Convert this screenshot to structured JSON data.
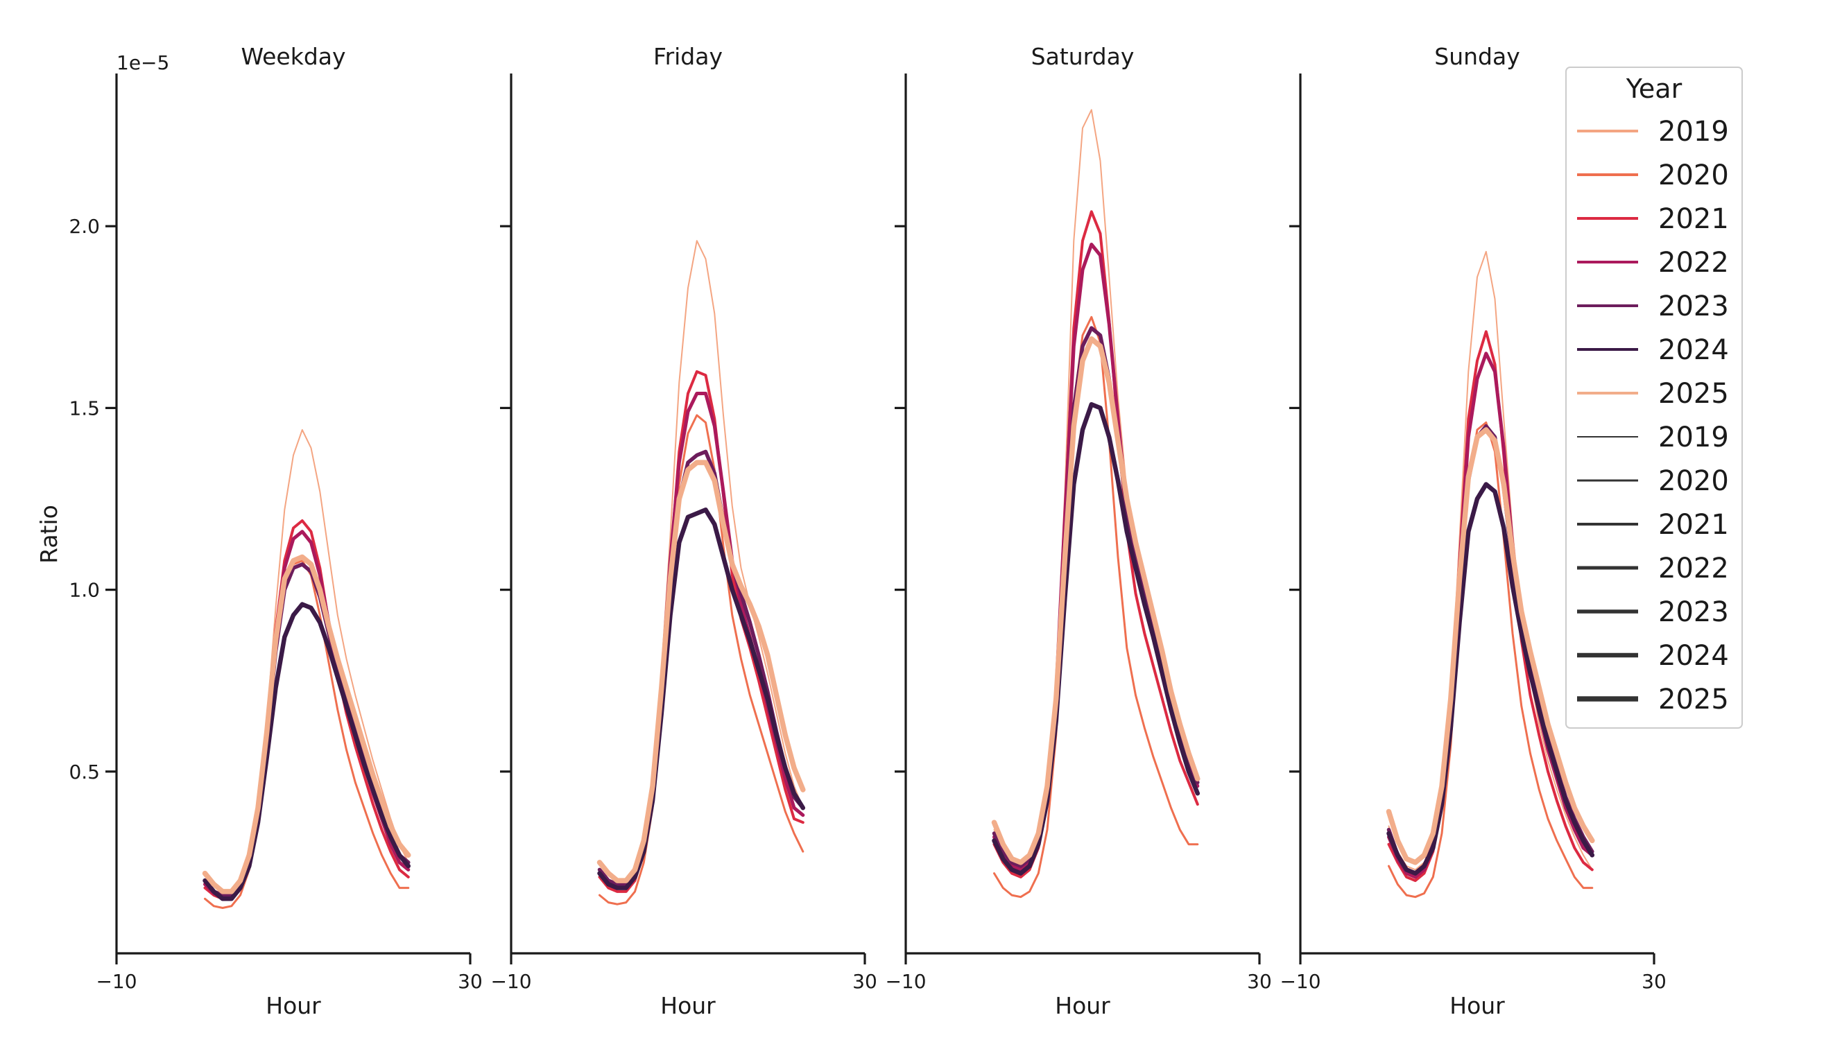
{
  "chart_data": {
    "type": "line",
    "ylabel": "Ratio",
    "xlabel": "Hour",
    "y_offset_label": "1e−5",
    "xlim": [
      -10,
      30
    ],
    "ylim": [
      0,
      2.42
    ],
    "xticks": [
      {
        "value": -10,
        "label": "−10"
      },
      {
        "value": 30,
        "label": "30"
      }
    ],
    "yticks": [
      {
        "value": 0.5,
        "label": "0.5"
      },
      {
        "value": 1.0,
        "label": "1.0"
      },
      {
        "value": 1.5,
        "label": "1.5"
      },
      {
        "value": 2.0,
        "label": "2.0"
      }
    ],
    "x": [
      0,
      1,
      2,
      3,
      4,
      5,
      6,
      7,
      8,
      9,
      10,
      11,
      12,
      13,
      14,
      15,
      16,
      17,
      18,
      19,
      20,
      21,
      22,
      23
    ],
    "year_colors": {
      "2019": "#f4a582",
      "2020": "#ef6f4f",
      "2021": "#dc2a42",
      "2022": "#ab1a5c",
      "2023": "#6d1d5c",
      "2024": "#3b1a47",
      "2025": "#f2ad8a"
    },
    "year_widths": {
      "2019": 2,
      "2020": 3,
      "2021": 4,
      "2022": 5,
      "2023": 5.5,
      "2024": 6.5,
      "2025": 7.5
    },
    "panels": [
      {
        "title": "Weekday",
        "series": [
          {
            "name": "2019",
            "values": [
              0.2,
              0.17,
              0.16,
              0.16,
              0.19,
              0.26,
              0.4,
              0.64,
              0.95,
              1.22,
              1.37,
              1.44,
              1.39,
              1.27,
              1.1,
              0.93,
              0.81,
              0.71,
              0.62,
              0.53,
              0.45,
              0.37,
              0.3,
              0.25
            ]
          },
          {
            "name": "2020",
            "values": [
              0.15,
              0.13,
              0.125,
              0.13,
              0.16,
              0.23,
              0.36,
              0.58,
              0.84,
              1.0,
              1.07,
              1.08,
              1.04,
              0.93,
              0.8,
              0.67,
              0.56,
              0.47,
              0.4,
              0.33,
              0.27,
              0.22,
              0.18,
              0.18
            ]
          },
          {
            "name": "2021",
            "values": [
              0.18,
              0.16,
              0.15,
              0.15,
              0.18,
              0.25,
              0.38,
              0.61,
              0.89,
              1.08,
              1.17,
              1.19,
              1.16,
              1.06,
              0.91,
              0.77,
              0.66,
              0.57,
              0.49,
              0.41,
              0.34,
              0.28,
              0.23,
              0.21
            ]
          },
          {
            "name": "2022",
            "values": [
              0.19,
              0.165,
              0.155,
              0.155,
              0.185,
              0.255,
              0.385,
              0.6,
              0.87,
              1.06,
              1.14,
              1.16,
              1.13,
              1.04,
              0.91,
              0.79,
              0.69,
              0.6,
              0.52,
              0.44,
              0.37,
              0.3,
              0.25,
              0.23
            ]
          },
          {
            "name": "2023",
            "values": [
              0.2,
              0.17,
              0.16,
              0.16,
              0.19,
              0.26,
              0.38,
              0.59,
              0.83,
              1.0,
              1.06,
              1.07,
              1.05,
              0.98,
              0.88,
              0.78,
              0.7,
              0.62,
              0.54,
              0.46,
              0.39,
              0.32,
              0.27,
              0.25
            ]
          },
          {
            "name": "2024",
            "values": [
              0.2,
              0.17,
              0.15,
              0.15,
              0.18,
              0.24,
              0.36,
              0.54,
              0.73,
              0.87,
              0.93,
              0.96,
              0.95,
              0.91,
              0.84,
              0.76,
              0.68,
              0.6,
              0.52,
              0.45,
              0.38,
              0.32,
              0.27,
              0.24
            ]
          },
          {
            "name": "2025",
            "values": [
              0.22,
              0.19,
              0.17,
              0.17,
              0.2,
              0.27,
              0.4,
              0.61,
              0.86,
              1.03,
              1.08,
              1.09,
              1.07,
              1.0,
              0.9,
              0.81,
              0.73,
              0.65,
              0.57,
              0.49,
              0.42,
              0.35,
              0.3,
              0.27
            ]
          }
        ]
      },
      {
        "title": "Friday",
        "series": [
          {
            "name": "2019",
            "values": [
              0.22,
              0.2,
              0.19,
              0.19,
              0.22,
              0.29,
              0.45,
              0.78,
              1.15,
              1.57,
              1.83,
              1.96,
              1.91,
              1.76,
              1.48,
              1.23,
              1.06,
              0.96,
              0.87,
              0.77,
              0.66,
              0.55,
              0.46,
              0.4
            ]
          },
          {
            "name": "2020",
            "values": [
              0.16,
              0.14,
              0.135,
              0.14,
              0.17,
              0.25,
              0.4,
              0.68,
              1.0,
              1.29,
              1.43,
              1.48,
              1.46,
              1.33,
              1.12,
              0.93,
              0.81,
              0.71,
              0.63,
              0.55,
              0.47,
              0.39,
              0.33,
              0.28
            ]
          },
          {
            "name": "2021",
            "values": [
              0.21,
              0.18,
              0.17,
              0.17,
              0.2,
              0.28,
              0.43,
              0.73,
              1.07,
              1.38,
              1.54,
              1.6,
              1.59,
              1.47,
              1.26,
              1.04,
              0.92,
              0.84,
              0.75,
              0.65,
              0.55,
              0.45,
              0.37,
              0.36
            ]
          },
          {
            "name": "2022",
            "values": [
              0.22,
              0.19,
              0.18,
              0.18,
              0.21,
              0.29,
              0.44,
              0.74,
              1.08,
              1.35,
              1.49,
              1.54,
              1.54,
              1.45,
              1.27,
              1.08,
              0.96,
              0.87,
              0.78,
              0.68,
              0.58,
              0.48,
              0.4,
              0.38
            ]
          },
          {
            "name": "2023",
            "values": [
              0.23,
              0.2,
              0.19,
              0.19,
              0.22,
              0.3,
              0.45,
              0.72,
              1.03,
              1.25,
              1.35,
              1.37,
              1.38,
              1.32,
              1.19,
              1.07,
              0.99,
              0.91,
              0.82,
              0.72,
              0.61,
              0.51,
              0.43,
              0.4
            ]
          },
          {
            "name": "2024",
            "values": [
              0.22,
              0.19,
              0.18,
              0.18,
              0.21,
              0.28,
              0.42,
              0.66,
              0.93,
              1.13,
              1.2,
              1.21,
              1.22,
              1.18,
              1.09,
              1.0,
              0.93,
              0.86,
              0.78,
              0.7,
              0.6,
              0.51,
              0.44,
              0.4
            ]
          },
          {
            "name": "2025",
            "values": [
              0.25,
              0.22,
              0.2,
              0.2,
              0.23,
              0.31,
              0.46,
              0.73,
              1.03,
              1.25,
              1.33,
              1.35,
              1.35,
              1.3,
              1.18,
              1.07,
              1.01,
              0.96,
              0.9,
              0.82,
              0.71,
              0.6,
              0.51,
              0.45
            ]
          }
        ]
      },
      {
        "title": "Saturday",
        "series": [
          {
            "name": "2019",
            "values": [
              0.34,
              0.28,
              0.25,
              0.25,
              0.27,
              0.33,
              0.46,
              0.75,
              1.27,
              1.96,
              2.27,
              2.32,
              2.18,
              1.86,
              1.53,
              1.27,
              1.1,
              0.98,
              0.88,
              0.78,
              0.69,
              0.61,
              0.53,
              0.45
            ]
          },
          {
            "name": "2020",
            "values": [
              0.22,
              0.18,
              0.16,
              0.155,
              0.17,
              0.22,
              0.34,
              0.6,
              1.05,
              1.51,
              1.7,
              1.75,
              1.68,
              1.41,
              1.09,
              0.84,
              0.71,
              0.62,
              0.54,
              0.47,
              0.4,
              0.34,
              0.3,
              0.3
            ]
          },
          {
            "name": "2021",
            "values": [
              0.3,
              0.25,
              0.22,
              0.21,
              0.23,
              0.29,
              0.42,
              0.71,
              1.2,
              1.72,
              1.96,
              2.04,
              1.98,
              1.74,
              1.44,
              1.16,
              0.99,
              0.88,
              0.79,
              0.7,
              0.61,
              0.53,
              0.47,
              0.41
            ]
          },
          {
            "name": "2022",
            "values": [
              0.32,
              0.27,
              0.24,
              0.23,
              0.25,
              0.31,
              0.44,
              0.72,
              1.2,
              1.67,
              1.88,
              1.95,
              1.92,
              1.73,
              1.47,
              1.22,
              1.06,
              0.96,
              0.87,
              0.78,
              0.69,
              0.6,
              0.52,
              0.46
            ]
          },
          {
            "name": "2023",
            "values": [
              0.33,
              0.28,
              0.25,
              0.24,
              0.26,
              0.32,
              0.45,
              0.71,
              1.12,
              1.5,
              1.67,
              1.72,
              1.7,
              1.58,
              1.41,
              1.22,
              1.09,
              0.99,
              0.9,
              0.8,
              0.7,
              0.61,
              0.53,
              0.47
            ]
          },
          {
            "name": "2024",
            "values": [
              0.31,
              0.26,
              0.23,
              0.22,
              0.24,
              0.3,
              0.42,
              0.64,
              0.98,
              1.29,
              1.44,
              1.51,
              1.5,
              1.42,
              1.3,
              1.16,
              1.06,
              0.96,
              0.87,
              0.77,
              0.67,
              0.58,
              0.5,
              0.44
            ]
          },
          {
            "name": "2025",
            "values": [
              0.36,
              0.3,
              0.26,
              0.25,
              0.27,
              0.33,
              0.46,
              0.7,
              1.09,
              1.45,
              1.63,
              1.69,
              1.67,
              1.57,
              1.41,
              1.25,
              1.13,
              1.03,
              0.93,
              0.83,
              0.72,
              0.63,
              0.55,
              0.48
            ]
          }
        ]
      },
      {
        "title": "Sunday",
        "series": [
          {
            "name": "2019",
            "values": [
              0.35,
              0.28,
              0.24,
              0.23,
              0.25,
              0.3,
              0.42,
              0.7,
              1.14,
              1.6,
              1.86,
              1.93,
              1.8,
              1.47,
              1.16,
              0.92,
              0.76,
              0.63,
              0.53,
              0.45,
              0.38,
              0.32,
              0.27,
              0.23
            ]
          },
          {
            "name": "2020",
            "values": [
              0.24,
              0.19,
              0.16,
              0.155,
              0.165,
              0.21,
              0.33,
              0.57,
              0.94,
              1.29,
              1.44,
              1.46,
              1.38,
              1.14,
              0.88,
              0.68,
              0.55,
              0.45,
              0.37,
              0.31,
              0.26,
              0.21,
              0.18,
              0.18
            ]
          },
          {
            "name": "2021",
            "values": [
              0.3,
              0.25,
              0.21,
              0.2,
              0.22,
              0.28,
              0.41,
              0.68,
              1.08,
              1.47,
              1.63,
              1.71,
              1.62,
              1.37,
              1.07,
              0.86,
              0.71,
              0.6,
              0.5,
              0.42,
              0.35,
              0.29,
              0.25,
              0.23
            ]
          },
          {
            "name": "2022",
            "values": [
              0.32,
              0.26,
              0.22,
              0.21,
              0.23,
              0.29,
              0.42,
              0.68,
              1.06,
              1.42,
              1.58,
              1.65,
              1.6,
              1.39,
              1.12,
              0.92,
              0.78,
              0.66,
              0.56,
              0.48,
              0.4,
              0.34,
              0.29,
              0.27
            ]
          },
          {
            "name": "2023",
            "values": [
              0.34,
              0.27,
              0.23,
              0.22,
              0.24,
              0.3,
              0.43,
              0.67,
              1.01,
              1.3,
              1.42,
              1.45,
              1.42,
              1.28,
              1.07,
              0.91,
              0.79,
              0.68,
              0.59,
              0.51,
              0.43,
              0.37,
              0.32,
              0.28
            ]
          },
          {
            "name": "2024",
            "values": [
              0.33,
              0.27,
              0.23,
              0.22,
              0.24,
              0.29,
              0.41,
              0.62,
              0.91,
              1.16,
              1.25,
              1.29,
              1.27,
              1.17,
              1.01,
              0.88,
              0.77,
              0.67,
              0.58,
              0.5,
              0.42,
              0.36,
              0.31,
              0.27
            ]
          },
          {
            "name": "2025",
            "values": [
              0.39,
              0.31,
              0.26,
              0.25,
              0.27,
              0.33,
              0.46,
              0.7,
              1.03,
              1.31,
              1.42,
              1.44,
              1.41,
              1.29,
              1.1,
              0.94,
              0.83,
              0.73,
              0.63,
              0.55,
              0.47,
              0.4,
              0.35,
              0.31
            ]
          }
        ]
      }
    ],
    "legend": {
      "title": "Year",
      "placement": "top-right",
      "color_entries": [
        "2019",
        "2020",
        "2021",
        "2022",
        "2023",
        "2024",
        "2025"
      ],
      "width_entries": [
        "2019",
        "2020",
        "2021",
        "2022",
        "2023",
        "2024",
        "2025"
      ],
      "width_entry_color": "#333333"
    }
  }
}
